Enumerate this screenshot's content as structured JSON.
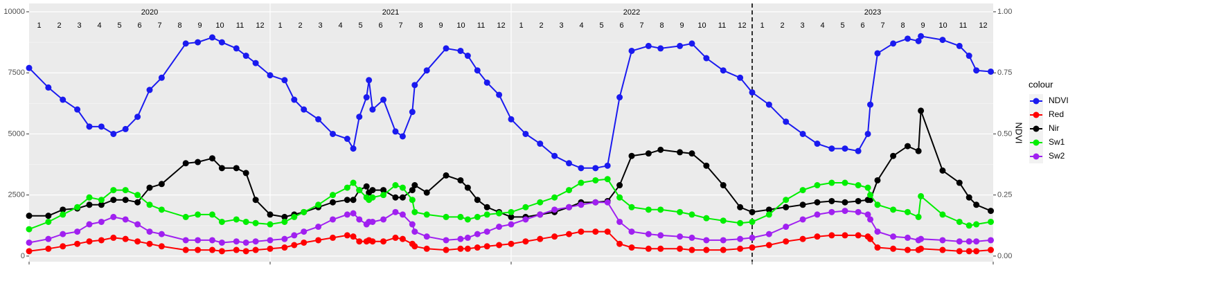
{
  "chart_data": {
    "type": "line",
    "y_axis_right_label": "NDVI",
    "legend_title": "colour",
    "years": [
      "2020",
      "2021",
      "2022",
      "2023"
    ],
    "months": [
      "1",
      "2",
      "3",
      "4",
      "5",
      "6",
      "7",
      "8",
      "9",
      "10",
      "11",
      "12"
    ],
    "xlim": [
      2020,
      2024
    ],
    "ylim": [
      -230,
      10340
    ],
    "yticks": [
      0,
      2500,
      5000,
      7500,
      10000
    ],
    "y2lim": [
      -0.023,
      1.034
    ],
    "y2ticks": [
      {
        "value": 0,
        "label": "0.00"
      },
      {
        "value": 0.25,
        "label": "0.25"
      },
      {
        "value": 0.5,
        "label": "0.50"
      },
      {
        "value": 0.75,
        "label": "0.75"
      },
      {
        "value": 1,
        "label": "1.00"
      }
    ],
    "grid": true,
    "legend_position": "right",
    "x": [
      2020.0,
      2020.08,
      2020.14,
      2020.2,
      2020.25,
      2020.3,
      2020.35,
      2020.4,
      2020.45,
      2020.5,
      2020.55,
      2020.65,
      2020.7,
      2020.76,
      2020.8,
      2020.86,
      2020.9,
      2020.94,
      2021.0,
      2021.06,
      2021.1,
      2021.14,
      2021.2,
      2021.26,
      2021.32,
      2021.345,
      2021.37,
      2021.4,
      2021.41,
      2021.425,
      2021.47,
      2021.52,
      2021.55,
      2021.59,
      2021.6,
      2021.65,
      2021.73,
      2021.79,
      2021.82,
      2021.86,
      2021.9,
      2021.95,
      2022.0,
      2022.06,
      2022.12,
      2022.18,
      2022.24,
      2022.29,
      2022.35,
      2022.4,
      2022.45,
      2022.5,
      2022.57,
      2022.62,
      2022.7,
      2022.75,
      2022.81,
      2022.88,
      2022.95,
      2023.0,
      2023.07,
      2023.14,
      2023.21,
      2023.27,
      2023.33,
      2023.385,
      2023.44,
      2023.48,
      2023.49,
      2023.52,
      2023.585,
      2023.645,
      2023.69,
      2023.7,
      2023.79,
      2023.86,
      2023.9,
      2023.93,
      2023.99
    ],
    "series": [
      {
        "name": "NDVI",
        "color": "#1a1aef",
        "axis": "y2",
        "values": [
          0.77,
          0.69,
          0.64,
          0.6,
          0.53,
          0.53,
          0.5,
          0.52,
          0.57,
          0.68,
          0.73,
          0.87,
          0.875,
          0.895,
          0.875,
          0.85,
          0.82,
          0.79,
          0.74,
          0.72,
          0.64,
          0.6,
          0.56,
          0.5,
          0.48,
          0.44,
          0.57,
          0.65,
          0.72,
          0.6,
          0.64,
          0.51,
          0.49,
          0.59,
          0.7,
          0.76,
          0.85,
          0.84,
          0.82,
          0.76,
          0.71,
          0.66,
          0.56,
          0.5,
          0.46,
          0.41,
          0.38,
          0.36,
          0.36,
          0.37,
          0.65,
          0.84,
          0.86,
          0.85,
          0.86,
          0.87,
          0.81,
          0.76,
          0.73,
          0.67,
          0.62,
          0.55,
          0.5,
          0.46,
          0.44,
          0.44,
          0.43,
          0.5,
          0.62,
          0.83,
          0.87,
          0.89,
          0.88,
          0.9,
          0.885,
          0.86,
          0.82,
          0.76,
          0.755
        ]
      },
      {
        "name": "Red",
        "color": "#ff0000",
        "values": [
          200,
          300,
          400,
          500,
          600,
          650,
          750,
          700,
          600,
          500,
          400,
          250,
          250,
          250,
          200,
          250,
          200,
          250,
          300,
          350,
          450,
          550,
          650,
          750,
          850,
          800,
          600,
          600,
          650,
          600,
          600,
          750,
          700,
          500,
          400,
          300,
          250,
          300,
          300,
          350,
          400,
          450,
          500,
          600,
          700,
          800,
          900,
          1000,
          1000,
          1000,
          500,
          350,
          300,
          300,
          300,
          250,
          250,
          250,
          300,
          350,
          450,
          600,
          700,
          800,
          850,
          850,
          850,
          800,
          700,
          350,
          300,
          250,
          250,
          300,
          250,
          200,
          200,
          200,
          250
        ]
      },
      {
        "name": "Nir",
        "color": "#000000",
        "values": [
          1650,
          1650,
          1900,
          1950,
          2100,
          2100,
          2300,
          2300,
          2200,
          2800,
          2950,
          3800,
          3850,
          4000,
          3600,
          3600,
          3400,
          2300,
          1700,
          1600,
          1700,
          1800,
          2000,
          2200,
          2300,
          2300,
          2700,
          2850,
          2600,
          2700,
          2700,
          2400,
          2400,
          2700,
          2900,
          2600,
          3300,
          3100,
          2800,
          2300,
          2000,
          1800,
          1600,
          1600,
          1700,
          1800,
          2000,
          2200,
          2200,
          2250,
          2900,
          4100,
          4200,
          4350,
          4250,
          4200,
          3700,
          2900,
          2000,
          1800,
          1900,
          2000,
          2100,
          2200,
          2250,
          2200,
          2250,
          2300,
          2300,
          3100,
          4100,
          4500,
          4300,
          5950,
          3500,
          3000,
          2400,
          2100,
          1850
        ]
      },
      {
        "name": "Sw1",
        "color": "#00ee00",
        "values": [
          1100,
          1400,
          1700,
          2000,
          2400,
          2300,
          2700,
          2700,
          2500,
          2100,
          1900,
          1600,
          1700,
          1700,
          1400,
          1500,
          1400,
          1350,
          1300,
          1400,
          1600,
          1800,
          2100,
          2500,
          2800,
          3000,
          2700,
          2400,
          2300,
          2400,
          2500,
          2900,
          2800,
          2300,
          1800,
          1700,
          1600,
          1600,
          1500,
          1600,
          1700,
          1750,
          1800,
          2000,
          2200,
          2400,
          2700,
          3000,
          3100,
          3150,
          2400,
          2000,
          1900,
          1900,
          1800,
          1700,
          1550,
          1450,
          1350,
          1400,
          1700,
          2300,
          2700,
          2900,
          3000,
          3000,
          2900,
          2800,
          2500,
          2100,
          1900,
          1800,
          1600,
          2450,
          1700,
          1400,
          1250,
          1300,
          1400
        ]
      },
      {
        "name": "Sw2",
        "color": "#a020f0",
        "values": [
          550,
          700,
          900,
          1000,
          1300,
          1400,
          1600,
          1500,
          1300,
          1000,
          900,
          650,
          650,
          650,
          550,
          600,
          550,
          600,
          650,
          700,
          850,
          1000,
          1200,
          1500,
          1700,
          1750,
          1500,
          1300,
          1400,
          1400,
          1500,
          1800,
          1700,
          1300,
          1000,
          800,
          650,
          700,
          750,
          900,
          1000,
          1200,
          1300,
          1500,
          1700,
          1900,
          2000,
          2100,
          2200,
          2200,
          1400,
          1000,
          900,
          850,
          800,
          750,
          650,
          650,
          700,
          750,
          900,
          1200,
          1500,
          1700,
          1800,
          1850,
          1800,
          1700,
          1500,
          1000,
          800,
          750,
          650,
          700,
          650,
          600,
          600,
          600,
          650
        ]
      }
    ]
  }
}
